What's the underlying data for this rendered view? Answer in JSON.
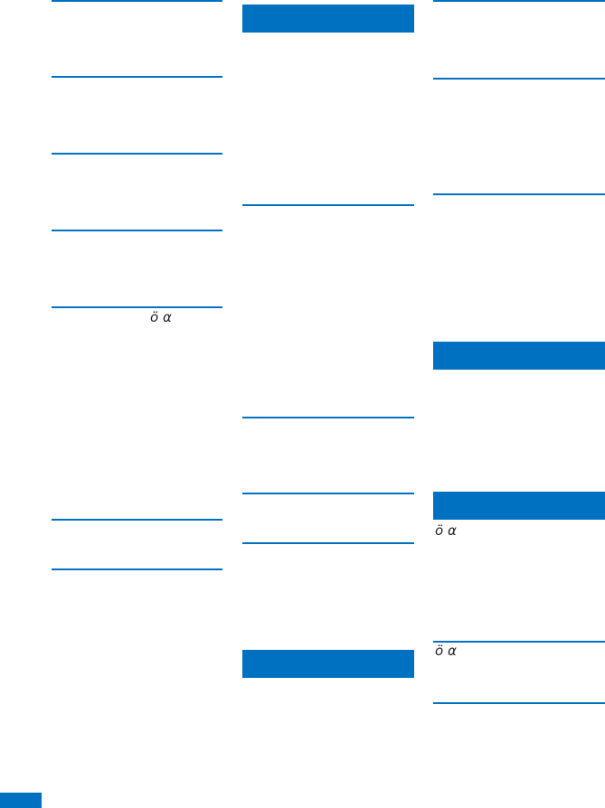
{
  "accent_color": "#0070c0",
  "glyphs": {
    "g1": "ö α",
    "g2": "ö α",
    "g3": "ö α"
  }
}
